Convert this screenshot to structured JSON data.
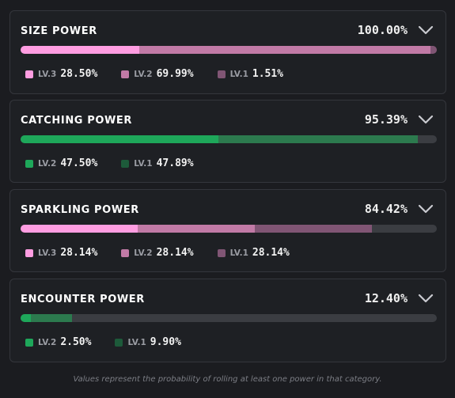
{
  "cards": [
    {
      "title": "SIZE POWER",
      "percent": "100.00%",
      "segments": [
        {
          "value": 28.5,
          "color": "#ff9de1"
        },
        {
          "value": 69.99,
          "color": "#c17aa6"
        },
        {
          "value": 1.51,
          "color": "#805574"
        }
      ],
      "legend": [
        {
          "level": "LV.3",
          "value": "28.50%",
          "color": "#ff9de1"
        },
        {
          "level": "LV.2",
          "value": "69.99%",
          "color": "#c17aa6"
        },
        {
          "level": "LV.1",
          "value": "1.51%",
          "color": "#805574"
        }
      ]
    },
    {
      "title": "CATCHING POWER",
      "percent": "95.39%",
      "segments": [
        {
          "value": 47.5,
          "color": "#1ea75a"
        },
        {
          "value": 47.89,
          "color": "#2c7a4e"
        }
      ],
      "legend": [
        {
          "level": "LV.2",
          "value": "47.50%",
          "color": "#1ea75a"
        },
        {
          "level": "LV.1",
          "value": "47.89%",
          "color": "#1d5a3a"
        }
      ]
    },
    {
      "title": "SPARKLING POWER",
      "percent": "84.42%",
      "segments": [
        {
          "value": 28.14,
          "color": "#ff9de1"
        },
        {
          "value": 28.14,
          "color": "#c17aa6"
        },
        {
          "value": 28.14,
          "color": "#805574"
        }
      ],
      "legend": [
        {
          "level": "LV.3",
          "value": "28.14%",
          "color": "#ff9de1"
        },
        {
          "level": "LV.2",
          "value": "28.14%",
          "color": "#c17aa6"
        },
        {
          "level": "LV.1",
          "value": "28.14%",
          "color": "#805574"
        }
      ]
    },
    {
      "title": "ENCOUNTER POWER",
      "percent": "12.40%",
      "segments": [
        {
          "value": 2.5,
          "color": "#1ea75a"
        },
        {
          "value": 9.9,
          "color": "#2c7a4e"
        }
      ],
      "legend": [
        {
          "level": "LV.2",
          "value": "2.50%",
          "color": "#1ea75a"
        },
        {
          "level": "LV.1",
          "value": "9.90%",
          "color": "#1d5a3a"
        }
      ]
    }
  ],
  "footnote": "Values represent the probability of rolling at least one power in that category."
}
